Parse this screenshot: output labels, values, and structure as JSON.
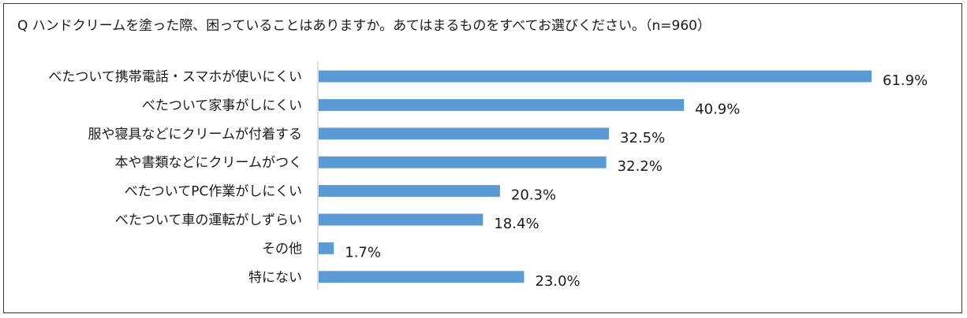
{
  "chart_data": {
    "type": "bar",
    "orientation": "horizontal",
    "title": "Q ハンドクリームを塗った際、困っていることはありますか。あてはまるものをすべてお選びください。（n=960）",
    "categories": [
      "べたついて携帯電話・スマホが使いにくい",
      "べたついて家事がしにくい",
      "服や寝具などにクリームが付着する",
      "本や書類などにクリームがつく",
      "べたついてPC作業がしにくい",
      "べたついて車の運転がしずらい",
      "その他",
      "特にない"
    ],
    "values": [
      61.9,
      40.9,
      32.5,
      32.2,
      20.3,
      18.4,
      1.7,
      23.0
    ],
    "value_labels": [
      "61.9%",
      "40.9%",
      "32.5%",
      "32.2%",
      "20.3%",
      "18.4%",
      "1.7%",
      "23.0%"
    ],
    "unit": "%",
    "bar_color": "#5b9bd5",
    "axis_color": "#bfbfbf",
    "grid": false,
    "legend": "none"
  }
}
